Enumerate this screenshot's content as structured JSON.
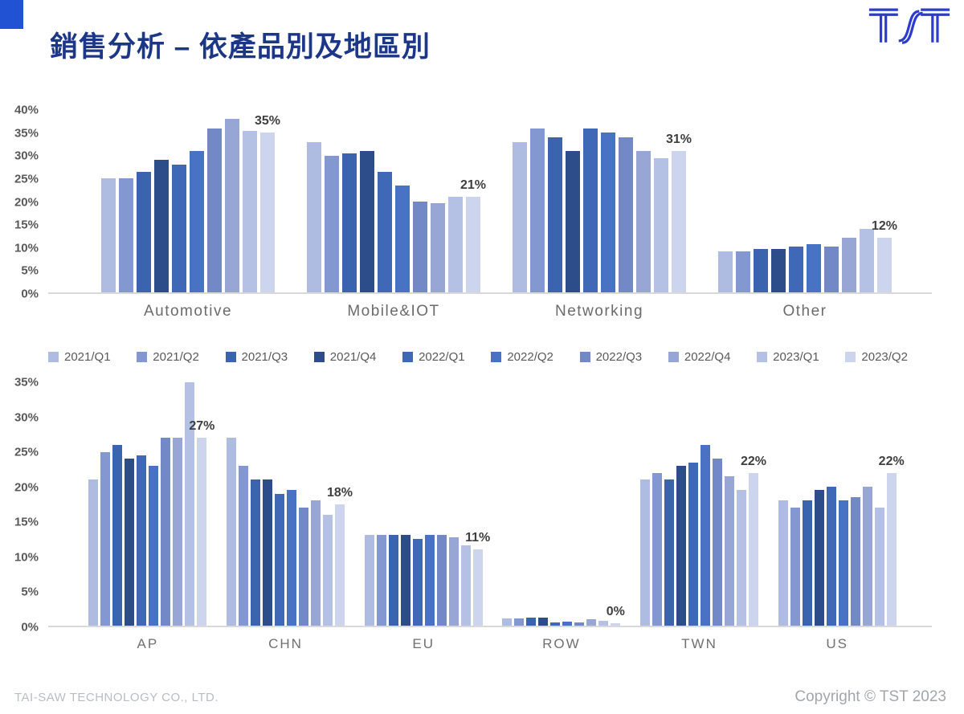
{
  "slide": {
    "title": "銷售分析 – 依產品別及地區別",
    "footer_left": "TAI-SAW TECHNOLOGY CO., LTD.",
    "footer_right": "Copyright © TST 2023",
    "logo_text": "TST"
  },
  "colors": {
    "title": "#1d3788",
    "accent_square": "#2152d3",
    "logo": "#2d3bd1",
    "axis_text": "#595959",
    "data_label": "#3f3f3f",
    "baseline": "#d9d9d9",
    "footer_left": "#b8bcc4",
    "footer_right": "#a2a6ab"
  },
  "legend": [
    "2021/Q1",
    "2021/Q2",
    "2021/Q3",
    "2021/Q4",
    "2022/Q1",
    "2022/Q2",
    "2022/Q3",
    "2022/Q4",
    "2023/Q1",
    "2023/Q2"
  ],
  "series_colors": [
    "#aebce2",
    "#8398d0",
    "#3b64af",
    "#2c4d89",
    "#3f68b7",
    "#4a72c4",
    "#7389c7",
    "#97a6d5",
    "#b5c0e5",
    "#cdd5ee"
  ],
  "chart_data": [
    {
      "type": "bar",
      "title": "Sales by product segment (share of revenue, quarterly)",
      "categories": [
        "Automotive",
        "Mobile&IOT",
        "Networking",
        "Other"
      ],
      "ylim": [
        0,
        40
      ],
      "ytick_step": 5,
      "grid": false,
      "series": [
        {
          "name": "2021/Q1",
          "values": [
            25,
            33,
            33,
            9
          ]
        },
        {
          "name": "2021/Q2",
          "values": [
            25,
            30,
            36,
            9
          ]
        },
        {
          "name": "2021/Q3",
          "values": [
            26.5,
            30.5,
            34,
            9.5
          ]
        },
        {
          "name": "2021/Q4",
          "values": [
            29,
            31,
            31,
            9.5
          ]
        },
        {
          "name": "2022/Q1",
          "values": [
            28,
            26.5,
            36,
            10
          ]
        },
        {
          "name": "2022/Q2",
          "values": [
            31,
            23.5,
            35,
            10.5
          ]
        },
        {
          "name": "2022/Q3",
          "values": [
            36,
            20,
            34,
            10
          ]
        },
        {
          "name": "2022/Q4",
          "values": [
            38,
            19.5,
            31,
            12
          ]
        },
        {
          "name": "2023/Q1",
          "values": [
            35.5,
            21,
            29.5,
            14
          ]
        },
        {
          "name": "2023/Q2",
          "values": [
            35,
            21,
            31,
            12
          ]
        }
      ],
      "data_labels": [
        {
          "category": "Automotive",
          "series": "2023/Q2",
          "text": "35%"
        },
        {
          "category": "Mobile&IOT",
          "series": "2023/Q2",
          "text": "21%"
        },
        {
          "category": "Networking",
          "series": "2023/Q2",
          "text": "31%"
        },
        {
          "category": "Other",
          "series": "2023/Q2",
          "text": "12%"
        }
      ]
    },
    {
      "type": "bar",
      "title": "Sales by region (share of revenue, quarterly)",
      "categories": [
        "AP",
        "CHN",
        "EU",
        "ROW",
        "TWN",
        "US"
      ],
      "ylim": [
        0,
        35
      ],
      "ytick_step": 5,
      "grid": false,
      "series": [
        {
          "name": "2021/Q1",
          "values": [
            21,
            27,
            13,
            1,
            21,
            18
          ]
        },
        {
          "name": "2021/Q2",
          "values": [
            25,
            23,
            13,
            1,
            22,
            17
          ]
        },
        {
          "name": "2021/Q3",
          "values": [
            26,
            21,
            13,
            1.2,
            21,
            18
          ]
        },
        {
          "name": "2021/Q4",
          "values": [
            24,
            21,
            13,
            1.2,
            23,
            19.5
          ]
        },
        {
          "name": "2022/Q1",
          "values": [
            24.5,
            19,
            12.5,
            0.5,
            23.5,
            20
          ]
        },
        {
          "name": "2022/Q2",
          "values": [
            23,
            19.5,
            13,
            0.6,
            26,
            18
          ]
        },
        {
          "name": "2022/Q3",
          "values": [
            27,
            17,
            13,
            0.5,
            24,
            18.5
          ]
        },
        {
          "name": "2022/Q4",
          "values": [
            27,
            18,
            12.7,
            0.9,
            21.5,
            20
          ]
        },
        {
          "name": "2023/Q1",
          "values": [
            35,
            16,
            11.5,
            0.7,
            19.5,
            17
          ]
        },
        {
          "name": "2023/Q2",
          "values": [
            27,
            17.5,
            11,
            0.3,
            22,
            22
          ]
        }
      ],
      "data_labels": [
        {
          "category": "AP",
          "series": "2023/Q2",
          "text": "27%"
        },
        {
          "category": "CHN",
          "series": "2023/Q2",
          "text": "18%"
        },
        {
          "category": "EU",
          "series": "2023/Q2",
          "text": "11%"
        },
        {
          "category": "ROW",
          "series": "2023/Q2",
          "text": "0%"
        },
        {
          "category": "TWN",
          "series": "2023/Q2",
          "text": "22%"
        },
        {
          "category": "US",
          "series": "2023/Q2",
          "text": "22%"
        }
      ]
    }
  ]
}
